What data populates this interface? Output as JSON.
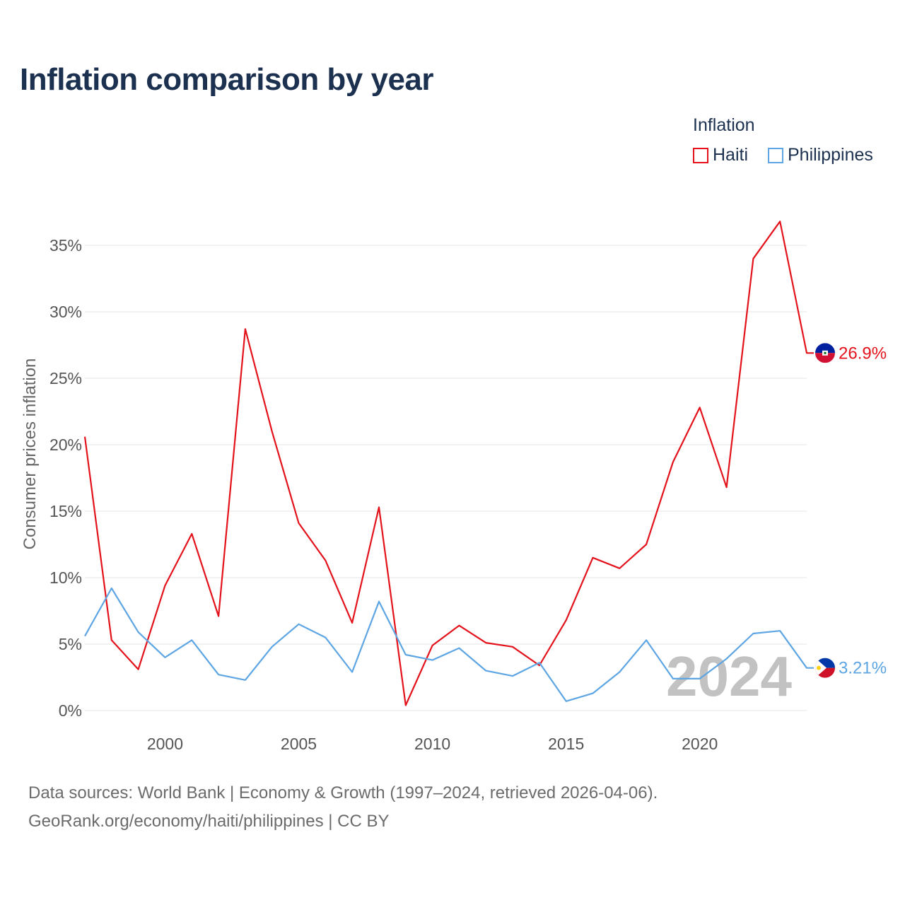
{
  "title": "Inflation comparison by year",
  "legend": {
    "title": "Inflation",
    "items": [
      {
        "name": "Haiti",
        "color": "#e3121b"
      },
      {
        "name": "Philippines",
        "color": "#5da5e3"
      }
    ]
  },
  "year_watermark": "2024",
  "end_labels": {
    "haiti": "26.9%",
    "philippines": "3.21%"
  },
  "footer": {
    "line1": "Data sources: World Bank | Economy & Growth (1997–2024, retrieved 2026-04-06).",
    "line2": "GeoRank.org/economy/haiti/philippines | CC BY"
  },
  "colors": {
    "haiti": "#e3121b",
    "philippines": "#5da5e3",
    "title": "#1c3150",
    "axis_text": "#555555",
    "grid": "#e6e6e6"
  },
  "chart_data": {
    "type": "line",
    "title": "Inflation comparison by year",
    "xlabel": "",
    "ylabel": "Consumer prices inflation",
    "xlim": [
      1997,
      2024
    ],
    "ylim": [
      0,
      37
    ],
    "x_ticks": [
      2000,
      2005,
      2010,
      2015,
      2020
    ],
    "y_ticks": [
      0,
      5,
      10,
      15,
      20,
      25,
      30,
      35
    ],
    "y_tick_labels": [
      "0%",
      "5%",
      "10%",
      "15%",
      "20%",
      "25%",
      "30%",
      "35%"
    ],
    "x": [
      1997,
      1998,
      1999,
      2000,
      2001,
      2002,
      2003,
      2004,
      2005,
      2006,
      2007,
      2008,
      2009,
      2010,
      2011,
      2012,
      2013,
      2014,
      2015,
      2016,
      2017,
      2018,
      2019,
      2020,
      2021,
      2022,
      2023,
      2024
    ],
    "series": [
      {
        "name": "Haiti",
        "values": [
          20.6,
          5.3,
          3.1,
          9.4,
          13.3,
          7.1,
          28.7,
          21.0,
          14.1,
          11.3,
          6.6,
          15.3,
          0.4,
          4.9,
          6.4,
          5.1,
          4.8,
          3.4,
          6.8,
          11.5,
          10.7,
          12.5,
          18.7,
          22.8,
          16.8,
          34.0,
          36.8,
          26.9
        ]
      },
      {
        "name": "Philippines",
        "values": [
          5.6,
          9.2,
          5.9,
          4.0,
          5.3,
          2.7,
          2.3,
          4.8,
          6.5,
          5.5,
          2.9,
          8.2,
          4.2,
          3.8,
          4.7,
          3.0,
          2.6,
          3.6,
          0.7,
          1.3,
          2.9,
          5.3,
          2.4,
          2.4,
          3.9,
          5.8,
          6.0,
          3.21
        ]
      }
    ]
  }
}
